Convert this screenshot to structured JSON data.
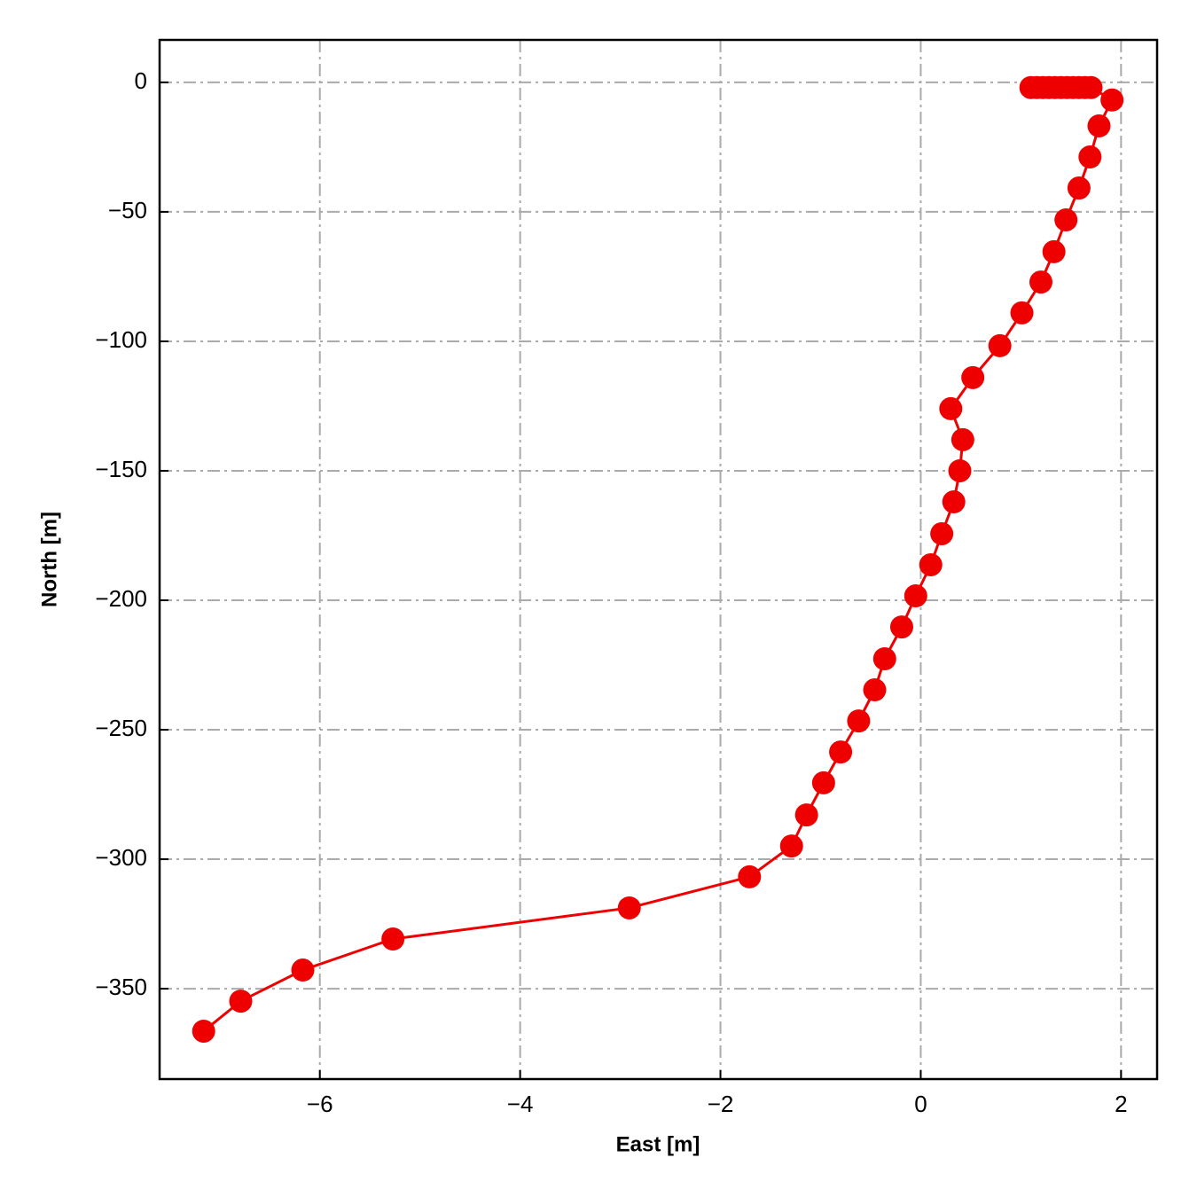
{
  "chart_data": {
    "type": "line",
    "xlabel": "East [m]",
    "ylabel": "North [m]",
    "x": [
      1.1,
      1.16,
      1.22,
      1.28,
      1.34,
      1.4,
      1.46,
      1.52,
      1.58,
      1.64,
      1.7,
      1.91,
      1.78,
      1.69,
      1.58,
      1.45,
      1.33,
      1.2,
      1.01,
      0.79,
      0.52,
      0.3,
      0.42,
      0.39,
      0.33,
      0.21,
      0.1,
      -0.05,
      -0.19,
      -0.36,
      -0.46,
      -0.62,
      -0.8,
      -0.97,
      -1.14,
      -1.29,
      -1.71,
      -2.91,
      -5.27,
      -6.17,
      -6.79,
      -7.16
    ],
    "values": [
      -2,
      -2,
      -2,
      -2,
      -2,
      -2,
      -2,
      -2,
      -2,
      -2,
      -2,
      -6.8,
      -16.8,
      -28.8,
      -40.8,
      -53.1,
      -65.4,
      -77.1,
      -89.0,
      -101.7,
      -114.0,
      -126.0,
      -138.0,
      -150.0,
      -162.0,
      -174.3,
      -186.3,
      -198.3,
      -210.3,
      -222.6,
      -234.6,
      -246.6,
      -258.6,
      -270.5,
      -282.9,
      -294.9,
      -306.8,
      -318.8,
      -330.8,
      -342.8,
      -354.8,
      -366.4
    ],
    "color": "#ee0000",
    "markers": true,
    "xlim": [
      -7.6,
      2.36
    ],
    "ylim": [
      -384.9,
      16.4
    ],
    "xticks": [
      {
        "value": -6,
        "label": "−6"
      },
      {
        "value": -4,
        "label": "−4"
      },
      {
        "value": -2,
        "label": "−2"
      },
      0,
      2
    ],
    "yticks": [
      0,
      {
        "value": -50,
        "label": "−50"
      },
      {
        "value": -100,
        "label": "−100"
      },
      {
        "value": -150,
        "label": "−150"
      },
      {
        "value": -200,
        "label": "−200"
      },
      {
        "value": -250,
        "label": "−250"
      },
      {
        "value": -300,
        "label": "−300"
      },
      {
        "value": -350,
        "label": "−350"
      }
    ],
    "grid": true
  }
}
